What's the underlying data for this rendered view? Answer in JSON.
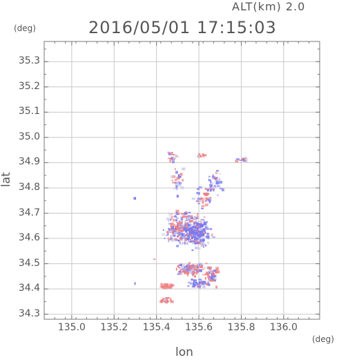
{
  "header": {
    "altitude_label": "ALT(km)  2.0",
    "timestamp": "2016/05/01 17:15:03",
    "y_unit": "(deg)",
    "x_unit": "(deg)"
  },
  "colors": {
    "axis": "#777777",
    "grid": "#c8c8c8",
    "positive": "#f08080",
    "negative": "#7a7af0",
    "neutral": "#c8c8f0"
  },
  "chart_data": {
    "type": "heatmap",
    "title": "2016/05/01 17:15:03",
    "xlabel": "lon",
    "ylabel": "lat",
    "xlim": [
      134.87,
      136.17
    ],
    "ylim": [
      34.28,
      35.38
    ],
    "x_ticks": [
      "135.0",
      "135.2",
      "135.4",
      "135.6",
      "135.8",
      "136.0"
    ],
    "y_ticks": [
      "34.3",
      "34.4",
      "34.5",
      "34.6",
      "34.7",
      "34.8",
      "34.9",
      "35.0",
      "35.1",
      "35.2",
      "35.3"
    ],
    "grid": true,
    "clusters": [
      {
        "lon": 135.48,
        "lat": 34.92,
        "lon_spread": 0.03,
        "lat_spread": 0.02,
        "n": 18,
        "kind": "mixed"
      },
      {
        "lon": 135.61,
        "lat": 34.925,
        "lon_spread": 0.02,
        "lat_spread": 0.01,
        "n": 8,
        "kind": "pos"
      },
      {
        "lon": 135.81,
        "lat": 34.91,
        "lon_spread": 0.04,
        "lat_spread": 0.01,
        "n": 14,
        "kind": "mixed"
      },
      {
        "lon": 135.5,
        "lat": 34.83,
        "lon_spread": 0.04,
        "lat_spread": 0.06,
        "n": 26,
        "kind": "mixed"
      },
      {
        "lon": 135.68,
        "lat": 34.81,
        "lon_spread": 0.04,
        "lat_spread": 0.06,
        "n": 40,
        "kind": "neg"
      },
      {
        "lon": 135.62,
        "lat": 34.76,
        "lon_spread": 0.05,
        "lat_spread": 0.04,
        "n": 30,
        "kind": "mixed"
      },
      {
        "lon": 135.3,
        "lat": 34.76,
        "lon_spread": 0.005,
        "lat_spread": 0.005,
        "n": 2,
        "kind": "neg"
      },
      {
        "lon": 135.52,
        "lat": 34.64,
        "lon_spread": 0.09,
        "lat_spread": 0.07,
        "n": 260,
        "kind": "mixed"
      },
      {
        "lon": 135.6,
        "lat": 34.62,
        "lon_spread": 0.06,
        "lat_spread": 0.06,
        "n": 160,
        "kind": "neg"
      },
      {
        "lon": 135.56,
        "lat": 34.48,
        "lon_spread": 0.07,
        "lat_spread": 0.03,
        "n": 110,
        "kind": "mixed"
      },
      {
        "lon": 135.66,
        "lat": 34.45,
        "lon_spread": 0.04,
        "lat_spread": 0.04,
        "n": 60,
        "kind": "mixed"
      },
      {
        "lon": 135.45,
        "lat": 34.41,
        "lon_spread": 0.04,
        "lat_spread": 0.01,
        "n": 30,
        "kind": "pos"
      },
      {
        "lon": 135.6,
        "lat": 34.42,
        "lon_spread": 0.05,
        "lat_spread": 0.02,
        "n": 50,
        "kind": "neg"
      },
      {
        "lon": 135.44,
        "lat": 34.355,
        "lon_spread": 0.04,
        "lat_spread": 0.01,
        "n": 35,
        "kind": "pos"
      },
      {
        "lon": 135.3,
        "lat": 34.42,
        "lon_spread": 0.005,
        "lat_spread": 0.005,
        "n": 2,
        "kind": "neg"
      },
      {
        "lon": 135.39,
        "lat": 34.52,
        "lon_spread": 0.005,
        "lat_spread": 0.005,
        "n": 1,
        "kind": "neg"
      }
    ]
  }
}
